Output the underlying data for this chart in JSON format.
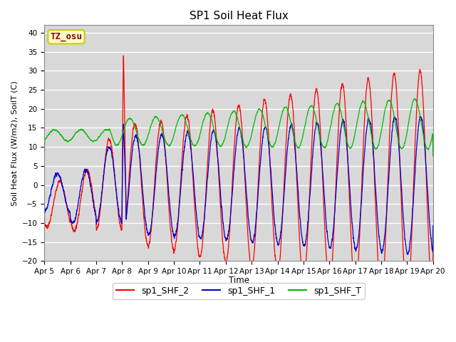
{
  "title": "SP1 Soil Heat Flux",
  "xlabel": "Time",
  "ylabel": "Soil Heat Flux (W/m2), SoilT (C)",
  "ylim": [
    -20,
    42
  ],
  "yticks": [
    -20,
    -15,
    -10,
    -5,
    0,
    5,
    10,
    15,
    20,
    25,
    30,
    35,
    40
  ],
  "x_tick_labels": [
    "Apr 5",
    "Apr 6",
    "Apr 7",
    "Apr 8",
    "Apr 9",
    "Apr 10",
    "Apr 11",
    "Apr 12",
    "Apr 13",
    "Apr 14",
    "Apr 15",
    "Apr 16",
    "Apr 17",
    "Apr 18",
    "Apr 19",
    "Apr 20"
  ],
  "tz_label": "TZ_osu",
  "tz_text_color": "#8b0000",
  "tz_bg_color": "#ffffcc",
  "tz_border_color": "#cccc00",
  "line_red": "#ff0000",
  "line_blue": "#0000cc",
  "line_green": "#00bb00",
  "legend_labels": [
    "sp1_SHF_2",
    "sp1_SHF_1",
    "sp1_SHF_T"
  ],
  "plot_bg": "#d8d8d8",
  "fig_bg": "#ffffff",
  "grid_color": "#ffffff",
  "n_days": 15,
  "ppd": 288
}
